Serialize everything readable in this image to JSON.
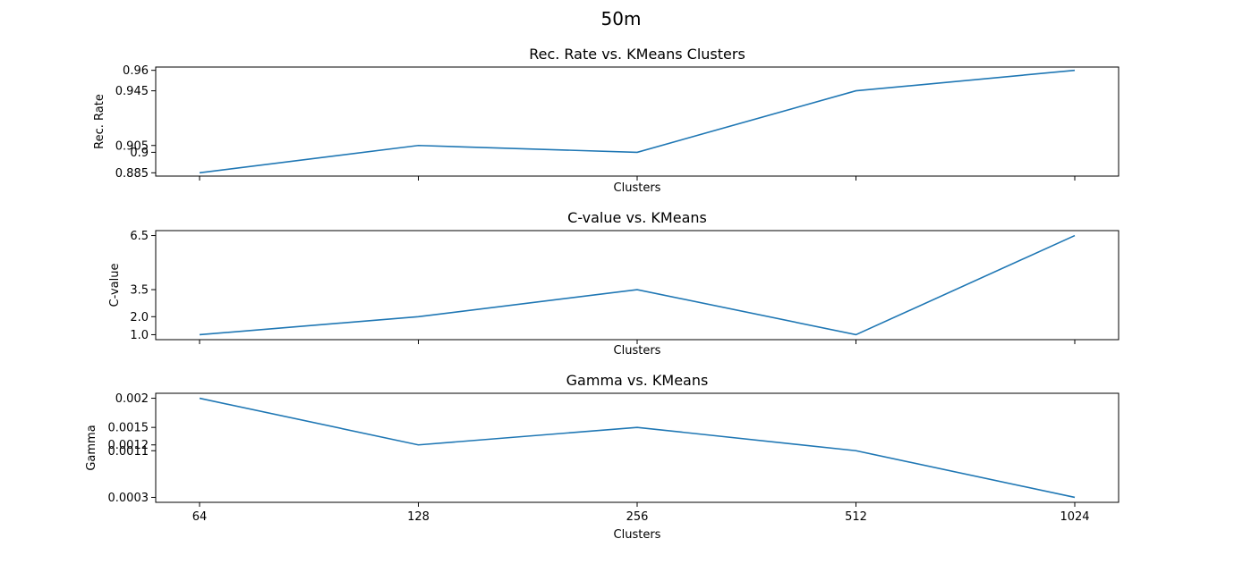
{
  "figure": {
    "title": "50m",
    "line_color": "#1f77b4"
  },
  "chart_data": [
    {
      "type": "line",
      "title": "Rec. Rate vs. KMeans Clusters",
      "xlabel": "Clusters",
      "ylabel": "Rec. Rate",
      "categories": [
        "64",
        "128",
        "256",
        "512",
        "1024"
      ],
      "values": [
        0.885,
        0.905,
        0.9,
        0.945,
        0.96
      ],
      "yticks": [
        0.885,
        0.9,
        0.905,
        0.945,
        0.96
      ],
      "ytick_labels": [
        "0.885",
        "0.9",
        "0.905",
        "0.945",
        "0.96"
      ],
      "ylim": [
        0.8826,
        0.9624
      ],
      "show_xtick_labels": false
    },
    {
      "type": "line",
      "title": "C-value vs. KMeans",
      "xlabel": "Clusters",
      "ylabel": "C-value",
      "categories": [
        "64",
        "128",
        "256",
        "512",
        "1024"
      ],
      "values": [
        1.0,
        2.0,
        3.5,
        1.0,
        6.5
      ],
      "yticks": [
        1.0,
        2.0,
        3.5,
        6.5
      ],
      "ytick_labels": [
        "1.0",
        "2.0",
        "3.5",
        "6.5"
      ],
      "ylim": [
        0.725,
        6.775
      ],
      "show_xtick_labels": false
    },
    {
      "type": "line",
      "title": "Gamma vs. KMeans",
      "xlabel": "Clusters",
      "ylabel": "Gamma",
      "categories": [
        "64",
        "128",
        "256",
        "512",
        "1024"
      ],
      "values": [
        0.002,
        0.0012,
        0.0015,
        0.0011,
        0.0003
      ],
      "yticks": [
        0.0003,
        0.0011,
        0.0012,
        0.0015,
        0.002
      ],
      "ytick_labels": [
        "0.0003",
        "0.0011",
        "0.0012",
        "0.0015",
        "0.002"
      ],
      "ylim": [
        0.000215,
        0.002085
      ],
      "show_xtick_labels": true
    }
  ]
}
